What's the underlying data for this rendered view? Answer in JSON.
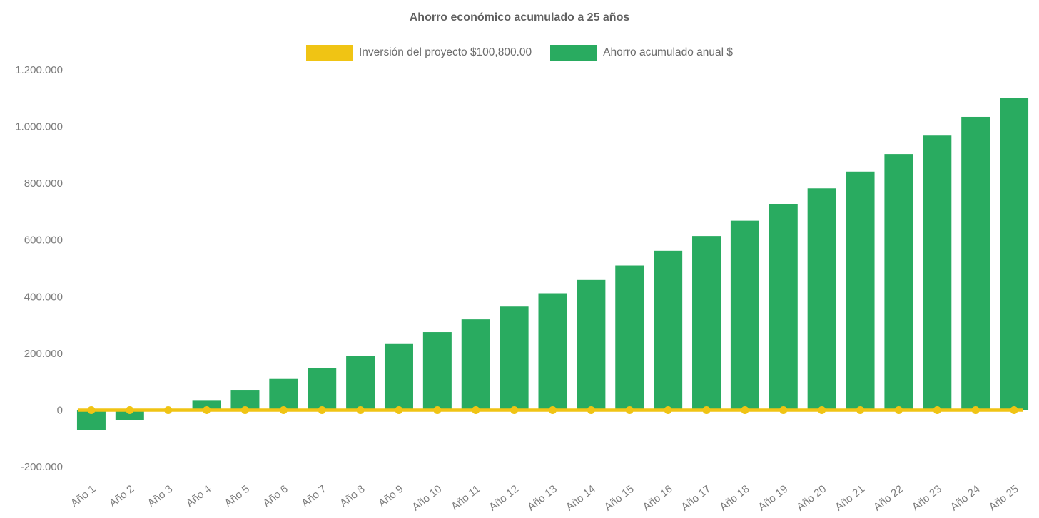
{
  "chart_data": {
    "type": "bar",
    "title": "Ahorro económico acumulado a 25 años",
    "categories": [
      "Año 1",
      "Año 2",
      "Año 3",
      "Año 4",
      "Año 5",
      "Año 6",
      "Año 7",
      "Año 8",
      "Año 9",
      "Año 10",
      "Año 11",
      "Año 12",
      "Año 13",
      "Año 14",
      "Año 15",
      "Año 16",
      "Año 17",
      "Año 18",
      "Año 19",
      "Año 20",
      "Año 21",
      "Año 22",
      "Año 23",
      "Año 24",
      "Año 25"
    ],
    "series": [
      {
        "name": "Inversión del proyecto $100,800.00",
        "type": "line",
        "color": "#F0C414",
        "values": [
          0,
          0,
          0,
          0,
          0,
          0,
          0,
          0,
          0,
          0,
          0,
          0,
          0,
          0,
          0,
          0,
          0,
          0,
          0,
          0,
          0,
          0,
          0,
          0,
          0
        ]
      },
      {
        "name": "Ahorro acumulado anual $",
        "type": "bar",
        "color": "#29AB60",
        "values": [
          -70000,
          -36000,
          0,
          33000,
          69000,
          110000,
          148000,
          190000,
          233000,
          275000,
          320000,
          365000,
          412000,
          459000,
          510000,
          562000,
          614000,
          668000,
          725000,
          782000,
          841000,
          903000,
          968000,
          1034000,
          1100000
        ]
      }
    ],
    "xlabel": "",
    "ylabel": "",
    "ylim": [
      -200000,
      1200000
    ],
    "ytick_step": 200000,
    "ytick_labels": [
      "-200.000",
      "0",
      "200.000",
      "400.000",
      "600.000",
      "800.000",
      "1.000.000",
      "1.200.000"
    ],
    "grid": false,
    "legend_position": "top",
    "x_label_rotation_deg": -38
  },
  "styles": {
    "background": "#ffffff",
    "title_color": "#616161",
    "axis_label_color": "#7c7c7c",
    "legend_text_color": "#6b6b6b"
  }
}
